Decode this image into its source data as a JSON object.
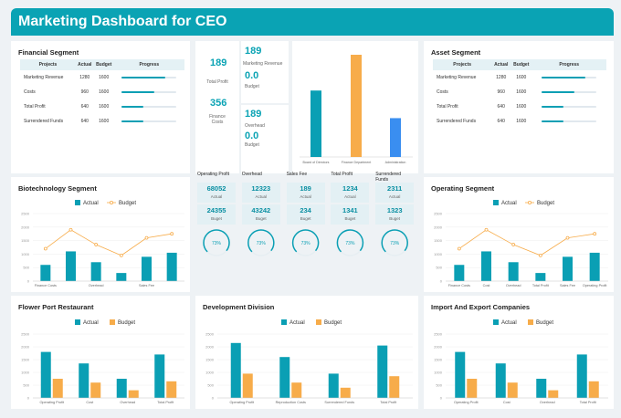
{
  "title": "Marketing Dashboard for CEO",
  "colors": {
    "accent": "#0aa3b4",
    "actual": "#0a9fb4",
    "budget": "#f7ac4a",
    "admin": "#3a8ef0"
  },
  "financial": {
    "title": "Financial Segment",
    "headers": [
      "Projects",
      "Actual",
      "Budget",
      "Progress"
    ],
    "rows": [
      {
        "name": "Marketing Revenue",
        "actual": "1280",
        "budget": "1600",
        "progress": 0.8
      },
      {
        "name": "Costs",
        "actual": "960",
        "budget": "1600",
        "progress": 0.6
      },
      {
        "name": "Total Profit",
        "actual": "640",
        "budget": "1600",
        "progress": 0.4
      },
      {
        "name": "Surrendered Funds",
        "actual": "640",
        "budget": "1600",
        "progress": 0.4
      }
    ]
  },
  "asset": {
    "title": "Asset Segment",
    "headers": [
      "Projects",
      "Actual",
      "Budget",
      "Progress"
    ],
    "rows": [
      {
        "name": "Marketing Revenue",
        "actual": "1280",
        "budget": "1600",
        "progress": 0.8
      },
      {
        "name": "Costs",
        "actual": "960",
        "budget": "1600",
        "progress": 0.6
      },
      {
        "name": "Total Profit",
        "actual": "640",
        "budget": "1600",
        "progress": 0.4
      },
      {
        "name": "Surrendered Funds",
        "actual": "640",
        "budget": "1600",
        "progress": 0.4
      }
    ]
  },
  "kpis": {
    "total_profit_value": "189",
    "total_profit_label": "Total Profit",
    "finance_costs_value": "356",
    "finance_costs_label": "Finance Costs",
    "mkt_rev_value": "189",
    "mkt_rev_label": "Marketing Revenue",
    "mkt_budget_value": "0.0",
    "mkt_budget_label": "Budget",
    "overhead_value": "189",
    "overhead_label": "Overhead",
    "overhead_budget_value": "0.0",
    "overhead_budget_label": "Budget"
  },
  "metrics": {
    "headers": [
      "Operating Profit",
      "Overhead",
      "Sales Fee",
      "Total Profit",
      "Surrendered Funds"
    ],
    "actual": [
      "68052",
      "12323",
      "189",
      "1234",
      "2311"
    ],
    "actual_label": "Actual",
    "budget": [
      "24355",
      "43242",
      "234",
      "1341",
      "1323"
    ],
    "budget_label": "Buget",
    "gauges": [
      0.73,
      0.73,
      0.73,
      0.73,
      0.73
    ],
    "gauge_labels": [
      "73%",
      "73%",
      "73%",
      "73%",
      "73%"
    ]
  },
  "chart_data": [
    {
      "id": "dept",
      "type": "bar",
      "categories": [
        "Board of Directors",
        "Finance Department",
        "Administration"
      ],
      "values": [
        0.65,
        1.0,
        0.38
      ],
      "colors": [
        "#0a9fb4",
        "#f7ac4a",
        "#3a8ef0"
      ]
    },
    {
      "id": "biotech",
      "type": "bar+line",
      "title": "Biotechnology Segment",
      "categories": [
        "Finance Costs",
        "",
        "Overhead",
        "",
        "Sales Fee",
        ""
      ],
      "tick_labels": [
        "0",
        "500",
        "1000",
        "1500",
        "2000",
        "2500"
      ],
      "ylim": [
        0,
        2500
      ],
      "series": [
        {
          "name": "Actual",
          "type": "bar",
          "values": [
            600,
            1100,
            700,
            300,
            900,
            1050
          ]
        },
        {
          "name": "Budget",
          "type": "line",
          "values": [
            1200,
            1900,
            1350,
            950,
            1600,
            1750
          ]
        }
      ]
    },
    {
      "id": "operating",
      "type": "bar+line",
      "title": "Operating Segment",
      "categories": [
        "Finance Costs",
        "Cost",
        "Overhead",
        "Total Profit",
        "Sales Fee",
        "Operating Profit"
      ],
      "tick_labels": [
        "0",
        "500",
        "1000",
        "1500",
        "2000",
        "2500"
      ],
      "ylim": [
        0,
        2500
      ],
      "series": [
        {
          "name": "Actual",
          "type": "bar",
          "values": [
            600,
            1100,
            700,
            300,
            900,
            1050
          ]
        },
        {
          "name": "Budget",
          "type": "line",
          "values": [
            1200,
            1900,
            1350,
            950,
            1600,
            1750
          ]
        }
      ]
    },
    {
      "id": "flower",
      "type": "bar",
      "title": "Flower Port Restaurant",
      "categories": [
        "Operating Profit",
        "Cost",
        "Overhead",
        "Total Profit"
      ],
      "tick_labels": [
        "0",
        "500",
        "1000",
        "1500",
        "2000",
        "2500"
      ],
      "ylim": [
        0,
        2500
      ],
      "series": [
        {
          "name": "Actual",
          "values": [
            1800,
            1350,
            750,
            1700
          ]
        },
        {
          "name": "Budget",
          "values": [
            750,
            600,
            300,
            650
          ]
        }
      ]
    },
    {
      "id": "dev",
      "type": "bar",
      "title": "Development Division",
      "categories": [
        "Operating Profit",
        "Reproduction Costs",
        "Surrendered Funds",
        "Total Profit"
      ],
      "tick_labels": [
        "0",
        "500",
        "1000",
        "1500",
        "2000",
        "2500"
      ],
      "ylim": [
        0,
        2500
      ],
      "series": [
        {
          "name": "Actual",
          "values": [
            2150,
            1600,
            950,
            2050
          ]
        },
        {
          "name": "Budget",
          "values": [
            950,
            600,
            400,
            850
          ]
        }
      ]
    },
    {
      "id": "import",
      "type": "bar",
      "title": "Import And Export Companies",
      "categories": [
        "Operating Profit",
        "Cost",
        "Overhead",
        "Total Profit"
      ],
      "tick_labels": [
        "0",
        "500",
        "1000",
        "1500",
        "2000",
        "2500"
      ],
      "ylim": [
        0,
        2500
      ],
      "series": [
        {
          "name": "Actual",
          "values": [
            1800,
            1350,
            750,
            1700
          ]
        },
        {
          "name": "Budget",
          "values": [
            750,
            600,
            300,
            650
          ]
        }
      ]
    }
  ]
}
